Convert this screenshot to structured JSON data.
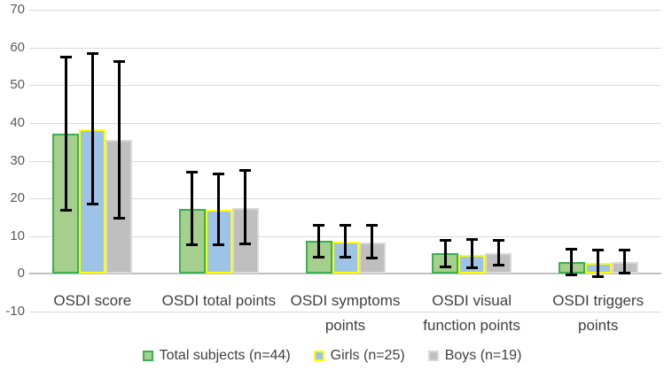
{
  "chart_data": {
    "type": "bar",
    "title": "",
    "xlabel": "",
    "ylabel": "",
    "categories": [
      "OSDI score",
      "OSDI total points",
      "OSDI symptoms points",
      "OSDI visual function points",
      "OSDI triggers points"
    ],
    "series": [
      {
        "name": "Total subjects (n=44)",
        "fill": "#a6ce8c",
        "border": "#36b24f",
        "values": [
          37.1,
          17.3,
          8.7,
          5.4,
          3.1
        ],
        "error_low": [
          16.7,
          7.7,
          4.2,
          1.7,
          -0.4
        ],
        "error_high": [
          57.5,
          27.0,
          13.0,
          9.1,
          6.7
        ]
      },
      {
        "name": "Girls (n=25)",
        "fill": "#9dc3e6",
        "border": "#ffff00",
        "values": [
          38.4,
          16.9,
          8.6,
          5.1,
          2.9
        ],
        "error_low": [
          18.5,
          7.7,
          4.2,
          1.4,
          -0.8
        ],
        "error_high": [
          58.5,
          26.7,
          13.0,
          9.3,
          6.4
        ]
      },
      {
        "name": "Boys (n=19)",
        "fill": "#bfbfbf",
        "border": "#d9d9d9",
        "values": [
          35.4,
          17.5,
          8.4,
          5.6,
          3.2
        ],
        "error_low": [
          14.7,
          7.9,
          4.0,
          2.2,
          0.2
        ],
        "error_high": [
          56.4,
          27.5,
          13.0,
          8.9,
          6.4
        ]
      }
    ],
    "y_axis": {
      "min": -10,
      "max": 70,
      "step": 10,
      "tick_labels": [
        "70",
        "60",
        "50",
        "40",
        "30",
        "20",
        "10",
        "0",
        "-10"
      ]
    },
    "ylim": [
      -10,
      70
    ],
    "grid": true,
    "legend_position": "bottom",
    "error_bars": true,
    "colors": {
      "error_bar": "#000000",
      "gridline": "#d9d9d9",
      "zero_line": "#c0c0c0",
      "tick_label": "#595959",
      "category_label": "#404040",
      "legend_label": "#404040",
      "background": "#ffffff"
    }
  }
}
